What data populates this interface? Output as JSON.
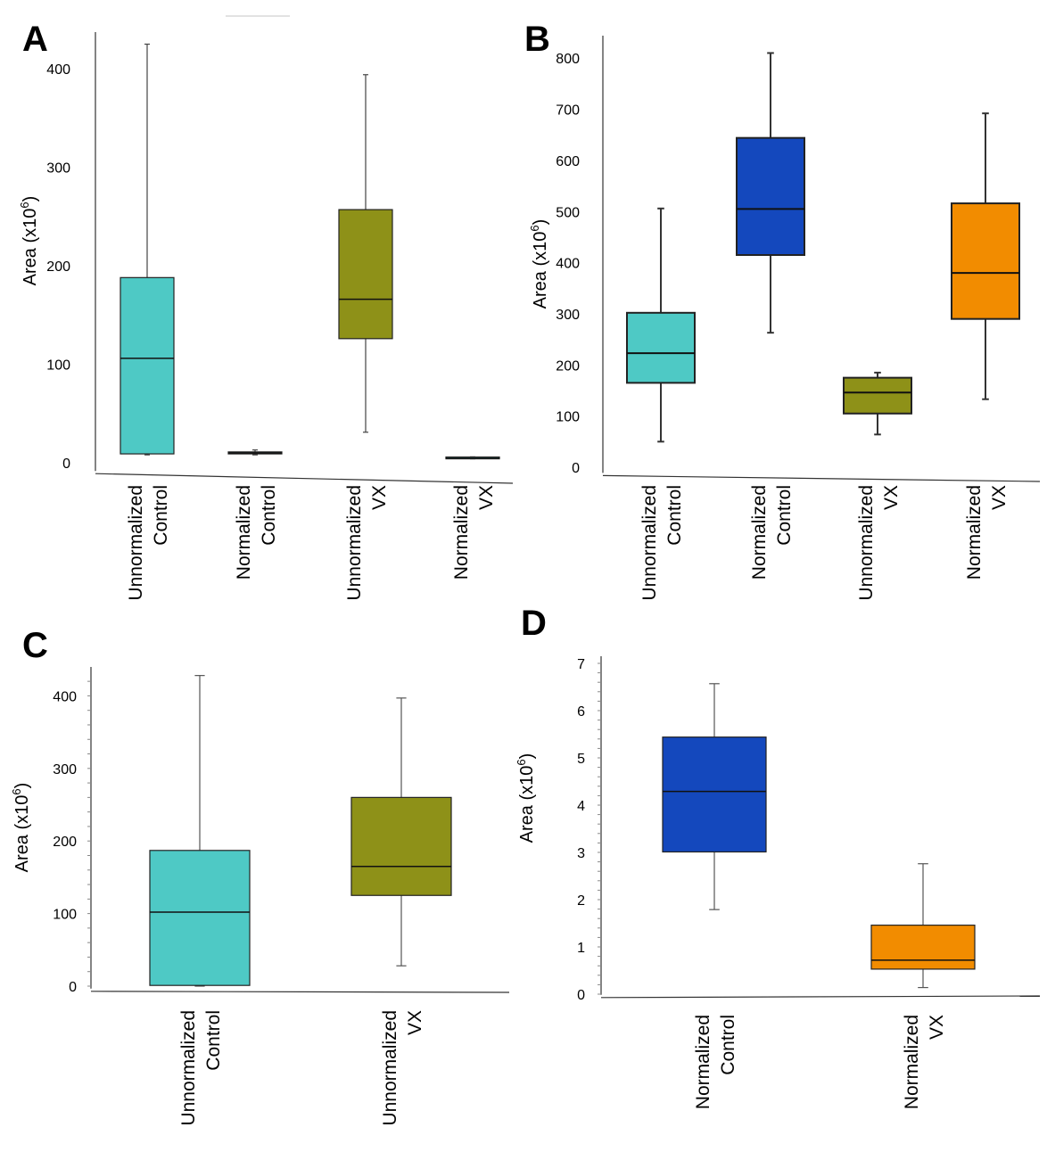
{
  "chart_data": [
    {
      "panel": "A",
      "type": "boxplot",
      "ylabel": "Area (x10",
      "ylabel_exp": "6",
      "ylabel_close": ")",
      "yticks": [
        0,
        100,
        200,
        300,
        400
      ],
      "ylim": [
        0,
        430
      ],
      "categories": [
        {
          "lines": [
            "Unnormalized",
            "Control"
          ],
          "color": "#4ec9c5",
          "min": 8,
          "q1": 9,
          "median": 106,
          "q3": 188,
          "max": 425
        },
        {
          "lines": [
            "Normalized",
            "Control"
          ],
          "color": "#4ec9c5",
          "min": 8,
          "q1": 9,
          "median": 10,
          "q3": 11,
          "max": 13
        },
        {
          "lines": [
            "Unnormalized",
            "VX"
          ],
          "color": "#8e9118",
          "min": 31,
          "q1": 126,
          "median": 166,
          "q3": 257,
          "max": 394
        },
        {
          "lines": [
            "Normalized",
            "VX"
          ],
          "color": "#4ec9c5",
          "min": 4,
          "q1": 4,
          "median": 4.5,
          "q3": 5,
          "max": 6
        }
      ]
    },
    {
      "panel": "B",
      "type": "boxplot",
      "ylabel": "Area (x10",
      "ylabel_exp": "6",
      "ylabel_close": ")",
      "yticks": [
        0,
        100,
        200,
        300,
        400,
        500,
        600,
        700,
        800
      ],
      "ylim": [
        0,
        830
      ],
      "categories": [
        {
          "lines": [
            "Unnormalized",
            "Control"
          ],
          "color": "#4ec9c5",
          "min": 50,
          "q1": 165,
          "median": 223,
          "q3": 302,
          "max": 506
        },
        {
          "lines": [
            "Normalized",
            "Control"
          ],
          "color": "#1448bd",
          "min": 263,
          "q1": 415,
          "median": 505,
          "q3": 644,
          "max": 810
        },
        {
          "lines": [
            "Unnormalized",
            "VX"
          ],
          "color": "#8e9118",
          "min": 64,
          "q1": 105,
          "median": 146,
          "q3": 175,
          "max": 185
        },
        {
          "lines": [
            "Normalized",
            "VX"
          ],
          "color": "#f28c00",
          "min": 133,
          "q1": 290,
          "median": 380,
          "q3": 516,
          "max": 692
        }
      ]
    },
    {
      "panel": "C",
      "type": "boxplot",
      "ylabel": "Area (x10",
      "ylabel_exp": "6",
      "ylabel_close": ")",
      "yticks": [
        0,
        100,
        200,
        300,
        400
      ],
      "ylim": [
        0,
        430
      ],
      "categories": [
        {
          "lines": [
            "Unnormalized",
            "Control"
          ],
          "color": "#4ec9c5",
          "min": 0,
          "q1": 1,
          "median": 102,
          "q3": 187,
          "max": 428
        },
        {
          "lines": [
            "Unnormalized",
            "VX"
          ],
          "color": "#8e9118",
          "min": 28,
          "q1": 125,
          "median": 165,
          "q3": 260,
          "max": 397
        }
      ]
    },
    {
      "panel": "D",
      "type": "boxplot",
      "ylabel": "Area (x10",
      "ylabel_exp": "6",
      "ylabel_close": ")",
      "yticks": [
        0,
        1,
        2,
        3,
        4,
        5,
        6,
        7
      ],
      "ylim": [
        0,
        7
      ],
      "categories": [
        {
          "lines": [
            "Normalized",
            "Control"
          ],
          "color": "#1448bd",
          "min": 1.79,
          "q1": 3.01,
          "median": 4.29,
          "q3": 5.44,
          "max": 6.57
        },
        {
          "lines": [
            "Normalized",
            "VX"
          ],
          "color": "#f28c00",
          "min": 0.14,
          "q1": 0.53,
          "median": 0.72,
          "q3": 1.46,
          "max": 2.76
        }
      ]
    }
  ]
}
